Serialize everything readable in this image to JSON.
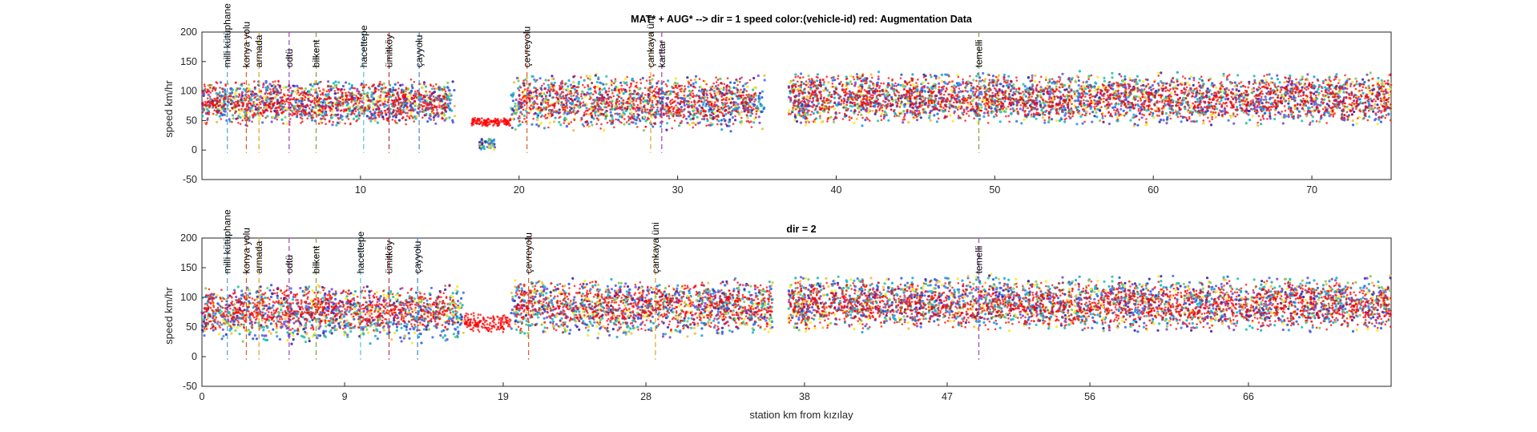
{
  "chart_data": [
    {
      "type": "scatter",
      "title": "MAT* + AUG* --> dir = 1  speed color:(vehicle-id) red: Augmentation Data",
      "xlabel": "",
      "ylabel": "speed km/hr",
      "xlim": [
        0,
        75
      ],
      "ylim": [
        -50,
        200
      ],
      "xticks": [
        10,
        20,
        30,
        40,
        50,
        60,
        70
      ],
      "yticks": [
        -50,
        0,
        50,
        100,
        150,
        200
      ],
      "grid": false,
      "color_encoding": "vehicle-id",
      "augmentation_color": "#ff0000",
      "stations": [
        {
          "name": "milli kütüphane",
          "x": 1.6,
          "color": "#4fa3d8"
        },
        {
          "name": "konya yolu",
          "x": 2.8,
          "color": "#e05a2a"
        },
        {
          "name": "armada",
          "x": 3.6,
          "color": "#e0a020"
        },
        {
          "name": "odtü",
          "x": 5.5,
          "color": "#a040c0"
        },
        {
          "name": "bilkent",
          "x": 7.2,
          "color": "#80a040"
        },
        {
          "name": "hacettepe",
          "x": 10.2,
          "color": "#4fc0e0"
        },
        {
          "name": "ümitköy",
          "x": 11.8,
          "color": "#c03040"
        },
        {
          "name": "çayyolu",
          "x": 13.7,
          "color": "#4080d0"
        },
        {
          "name": "çevreyolu",
          "x": 20.5,
          "color": "#e05a2a"
        },
        {
          "name": "çankaya üni",
          "x": 28.3,
          "color": "#e0a020"
        },
        {
          "name": "karttar",
          "x": 29.0,
          "color": "#a040c0"
        },
        {
          "name": "temelli",
          "x": 49.0,
          "color": "#80a040"
        }
      ],
      "series": [
        {
          "role": "vehicle-runs",
          "segments": [
            {
              "x": [
                0,
                16
              ],
              "y_range": [
                40,
                120
              ]
            },
            {
              "x": [
                17.5,
                18.5
              ],
              "y_range": [
                0,
                20
              ]
            },
            {
              "x": [
                19.5,
                35.5
              ],
              "y_range": [
                30,
                130
              ]
            },
            {
              "x": [
                37,
                75
              ],
              "y_range": [
                40,
                135
              ]
            }
          ]
        },
        {
          "role": "augmentation",
          "segments": [
            {
              "x": [
                0,
                15.5
              ],
              "y_range": [
                40,
                120
              ]
            },
            {
              "x": [
                17,
                19.5
              ],
              "y_range": [
                40,
                55
              ]
            },
            {
              "x": [
                20,
                35
              ],
              "y_range": [
                35,
                130
              ]
            },
            {
              "x": [
                37,
                75
              ],
              "y_range": [
                45,
                130
              ]
            }
          ]
        }
      ]
    },
    {
      "type": "scatter",
      "title": "dir = 2",
      "xlabel": "station km from kızılay",
      "ylabel": "speed km/hr",
      "xlim": [
        0,
        75
      ],
      "ylim": [
        -50,
        200
      ],
      "xticks": [
        0,
        9,
        19,
        28,
        38,
        47,
        56,
        66
      ],
      "yticks": [
        -50,
        0,
        50,
        100,
        150,
        200
      ],
      "grid": false,
      "color_encoding": "vehicle-id",
      "augmentation_color": "#ff0000",
      "stations": [
        {
          "name": "milli kütüphane",
          "x": 1.6,
          "color": "#4fa3d8"
        },
        {
          "name": "konya yolu",
          "x": 2.8,
          "color": "#e05a2a"
        },
        {
          "name": "armada",
          "x": 3.6,
          "color": "#e0a020"
        },
        {
          "name": "odtü",
          "x": 5.5,
          "color": "#a040c0"
        },
        {
          "name": "bilkent",
          "x": 7.2,
          "color": "#80a040"
        },
        {
          "name": "hacettepe",
          "x": 10.0,
          "color": "#4fc0e0"
        },
        {
          "name": "ümitköy",
          "x": 11.8,
          "color": "#c03040"
        },
        {
          "name": "çayyolu",
          "x": 13.6,
          "color": "#4080d0"
        },
        {
          "name": "çevreyolu",
          "x": 20.6,
          "color": "#e05a2a"
        },
        {
          "name": "çankaya üni",
          "x": 28.6,
          "color": "#e0a020"
        },
        {
          "name": "temelli",
          "x": 49.0,
          "color": "#a040c0"
        }
      ],
      "series": [
        {
          "role": "vehicle-runs",
          "segments": [
            {
              "x": [
                0,
                16.5
              ],
              "y_range": [
                20,
                125
              ]
            },
            {
              "x": [
                19.5,
                36
              ],
              "y_range": [
                30,
                135
              ]
            },
            {
              "x": [
                37,
                75
              ],
              "y_range": [
                40,
                140
              ]
            }
          ]
        },
        {
          "role": "augmentation",
          "segments": [
            {
              "x": [
                0,
                16
              ],
              "y_range": [
                40,
                120
              ]
            },
            {
              "x": [
                16.5,
                19.5
              ],
              "y_range": [
                40,
                75
              ]
            },
            {
              "x": [
                19.8,
                36
              ],
              "y_range": [
                40,
                130
              ]
            },
            {
              "x": [
                37,
                75
              ],
              "y_range": [
                45,
                130
              ]
            }
          ]
        }
      ]
    }
  ]
}
